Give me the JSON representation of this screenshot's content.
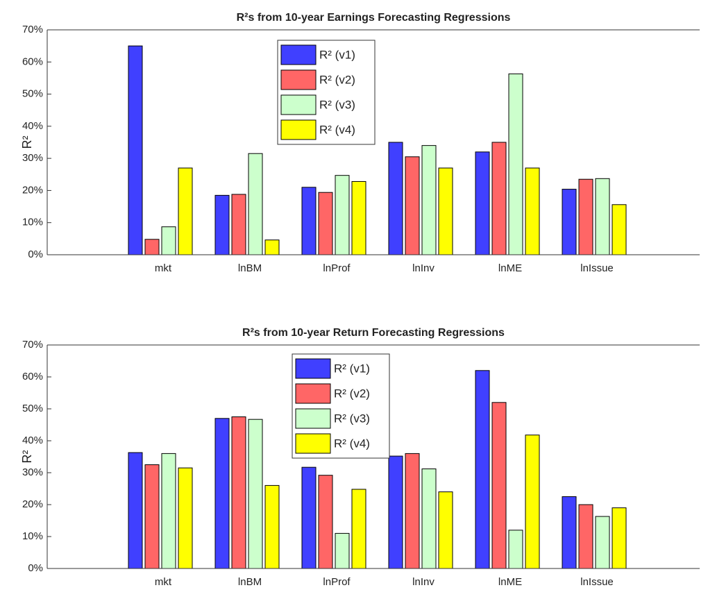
{
  "chart_data": [
    {
      "type": "bar",
      "title": "R²s from 10-year Earnings Forecasting Regressions",
      "y_label": "R²",
      "categories": [
        "mkt",
        "lnBM",
        "lnProf",
        "lnInv",
        "lnME",
        "lnIssue"
      ],
      "series": [
        {
          "name": "R² (v1)",
          "color": "#4040ff",
          "values": [
            65,
            18.5,
            21,
            35,
            32,
            20.4
          ]
        },
        {
          "name": "R² (v2)",
          "color": "#ff6666",
          "values": [
            4.8,
            18.8,
            19.4,
            30.5,
            35,
            23.5
          ]
        },
        {
          "name": "R² (v3)",
          "color": "#ccffcc",
          "values": [
            8.7,
            31.5,
            24.7,
            34,
            56.3,
            23.7
          ]
        },
        {
          "name": "R² (v4)",
          "color": "#ffff00",
          "values": [
            27,
            4.6,
            22.8,
            27,
            27,
            15.6
          ]
        }
      ],
      "ylim": [
        0,
        70
      ],
      "yticks": [
        {
          "value": 0,
          "label": "0%"
        },
        {
          "value": 10,
          "label": "10%"
        },
        {
          "value": 20,
          "label": "20%"
        },
        {
          "value": 30,
          "label": "30%"
        },
        {
          "value": 40,
          "label": "40%"
        },
        {
          "value": 50,
          "label": "50%"
        },
        {
          "value": 60,
          "label": "60%"
        },
        {
          "value": 70,
          "label": "70%"
        }
      ],
      "grid": false,
      "legend": "north"
    },
    {
      "type": "bar",
      "title": "R²s from 10-year Return Forecasting Regressions",
      "y_label": "R²",
      "categories": [
        "mkt",
        "lnBM",
        "lnProf",
        "lnInv",
        "lnME",
        "lnIssue"
      ],
      "series": [
        {
          "name": "R² (v1)",
          "color": "#4040ff",
          "values": [
            36.3,
            47,
            31.7,
            35.2,
            62,
            22.5
          ]
        },
        {
          "name": "R² (v2)",
          "color": "#ff6666",
          "values": [
            32.5,
            47.5,
            29.2,
            36,
            52,
            20
          ]
        },
        {
          "name": "R² (v3)",
          "color": "#ccffcc",
          "values": [
            36,
            46.7,
            11,
            31.2,
            12,
            16.3
          ]
        },
        {
          "name": "R² (v4)",
          "color": "#ffff00",
          "values": [
            31.5,
            26,
            24.8,
            24,
            41.8,
            19
          ]
        }
      ],
      "ylim": [
        0,
        70
      ],
      "yticks": [
        {
          "value": 0,
          "label": "0%"
        },
        {
          "value": 10,
          "label": "10%"
        },
        {
          "value": 20,
          "label": "20%"
        },
        {
          "value": 30,
          "label": "30%"
        },
        {
          "value": 40,
          "label": "40%"
        },
        {
          "value": 50,
          "label": "50%"
        },
        {
          "value": 60,
          "label": "60%"
        },
        {
          "value": 70,
          "label": "70%"
        }
      ],
      "grid": false,
      "legend": "north"
    }
  ]
}
